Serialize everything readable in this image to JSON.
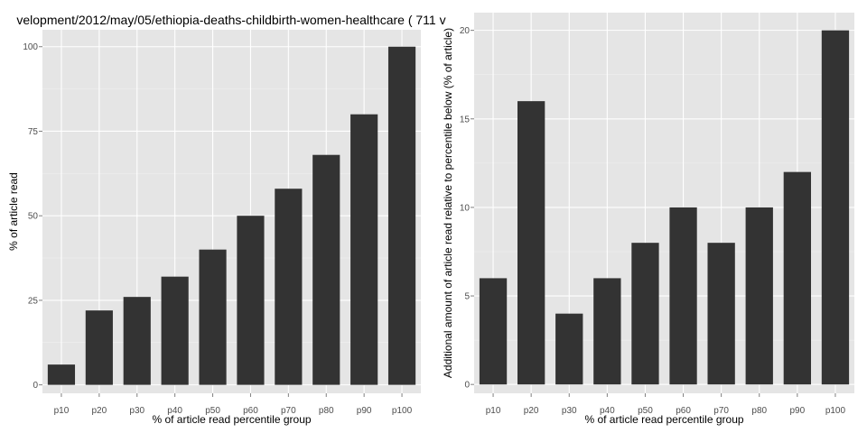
{
  "style": {
    "panel_bg": "#e5e5e5",
    "grid_major": "#ffffff",
    "grid_minor": "#f2f2f2",
    "bar_fill": "#333333"
  },
  "chart_data": [
    {
      "type": "bar",
      "title": "velopment/2012/may/05/ethiopia-deaths-childbirth-women-healthcare ( 711 v",
      "xlabel": "% of article read percentile group",
      "ylabel": "% of article read",
      "categories": [
        "p10",
        "p20",
        "p30",
        "p40",
        "p50",
        "p60",
        "p70",
        "p80",
        "p90",
        "p100"
      ],
      "values": [
        6,
        22,
        26,
        32,
        40,
        50,
        58,
        68,
        80,
        100
      ],
      "ylim": [
        -2.5,
        105
      ],
      "yticks": [
        0,
        25,
        50,
        75,
        100
      ],
      "grid": true
    },
    {
      "type": "bar",
      "title": "",
      "xlabel": "% of article read percentile group",
      "ylabel": "Additional amount of article read relative to percentile below (% of article)",
      "categories": [
        "p10",
        "p20",
        "p30",
        "p40",
        "p50",
        "p60",
        "p70",
        "p80",
        "p90",
        "p100"
      ],
      "values": [
        6,
        16,
        4,
        6,
        8,
        10,
        8,
        10,
        12,
        20
      ],
      "ylim": [
        -0.5,
        21
      ],
      "yticks": [
        0,
        5,
        10,
        15,
        20
      ],
      "grid": true
    }
  ]
}
